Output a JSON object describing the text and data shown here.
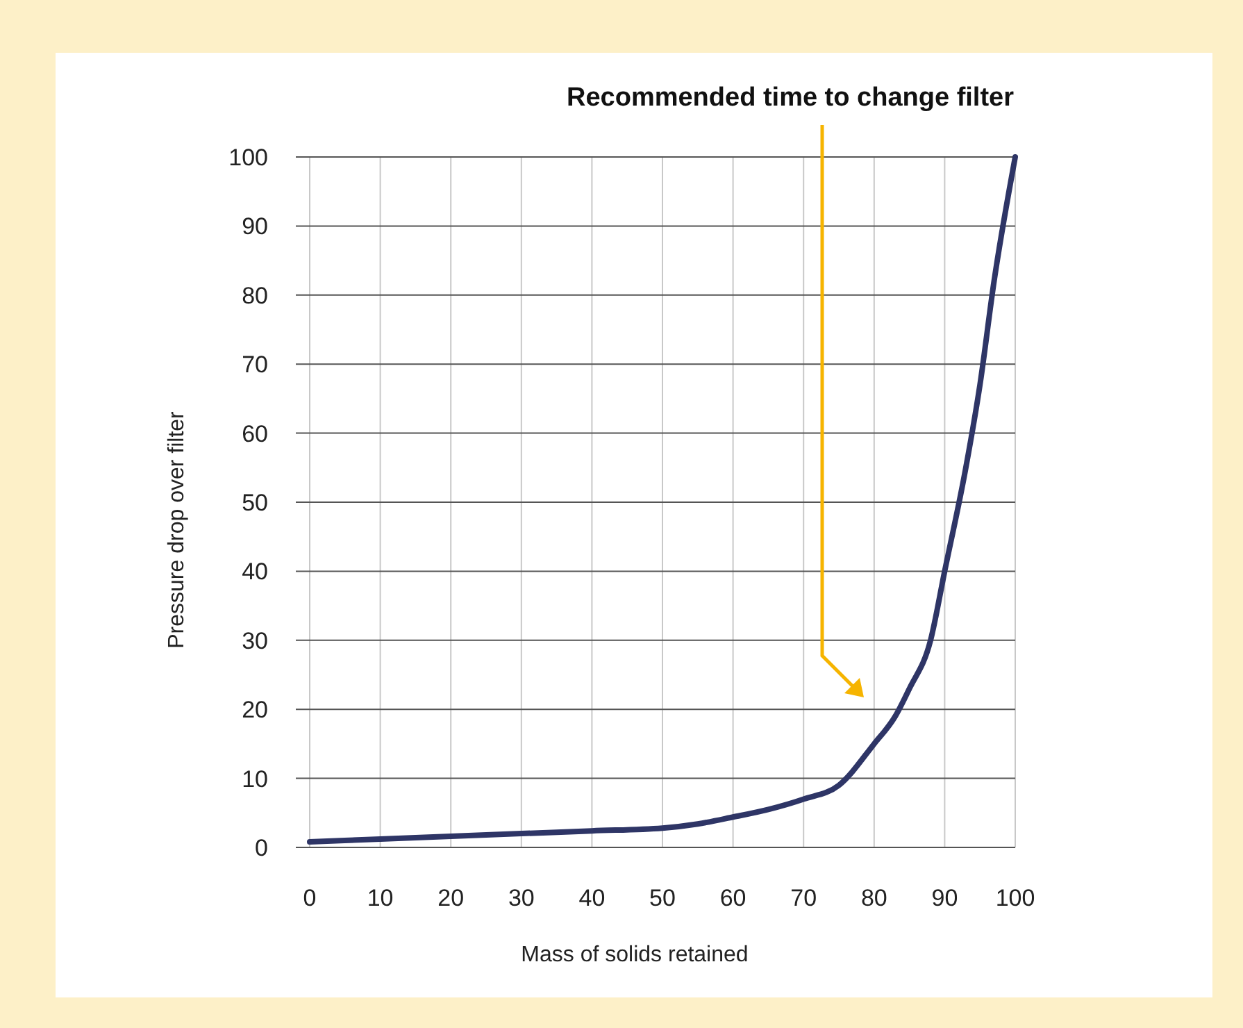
{
  "chart_data": {
    "type": "line",
    "xlabel": "Mass of solids retained",
    "ylabel": "Pressure drop over filter",
    "x": [
      0,
      10,
      20,
      30,
      40,
      50,
      55,
      60,
      65,
      70,
      75,
      80,
      83,
      85,
      88,
      90,
      93,
      95,
      97,
      100
    ],
    "series": [
      {
        "color": "#2e3566",
        "values": [
          0.8,
          1.2,
          1.6,
          2,
          2.4,
          2.8,
          3.4,
          4.4,
          5.5,
          7,
          9,
          15,
          19,
          23,
          30,
          40,
          55,
          67,
          82,
          100
        ]
      }
    ],
    "xlim": [
      0,
      100
    ],
    "ylim": [
      0,
      100
    ],
    "xticks": [
      0,
      10,
      20,
      30,
      40,
      50,
      60,
      70,
      80,
      90,
      100
    ],
    "yticks": [
      0,
      10,
      20,
      30,
      40,
      50,
      60,
      70,
      80,
      90,
      100
    ],
    "grid": true,
    "marker": "none",
    "line_style": "solid",
    "annotations": [
      "Recommended time to change filter"
    ]
  }
}
